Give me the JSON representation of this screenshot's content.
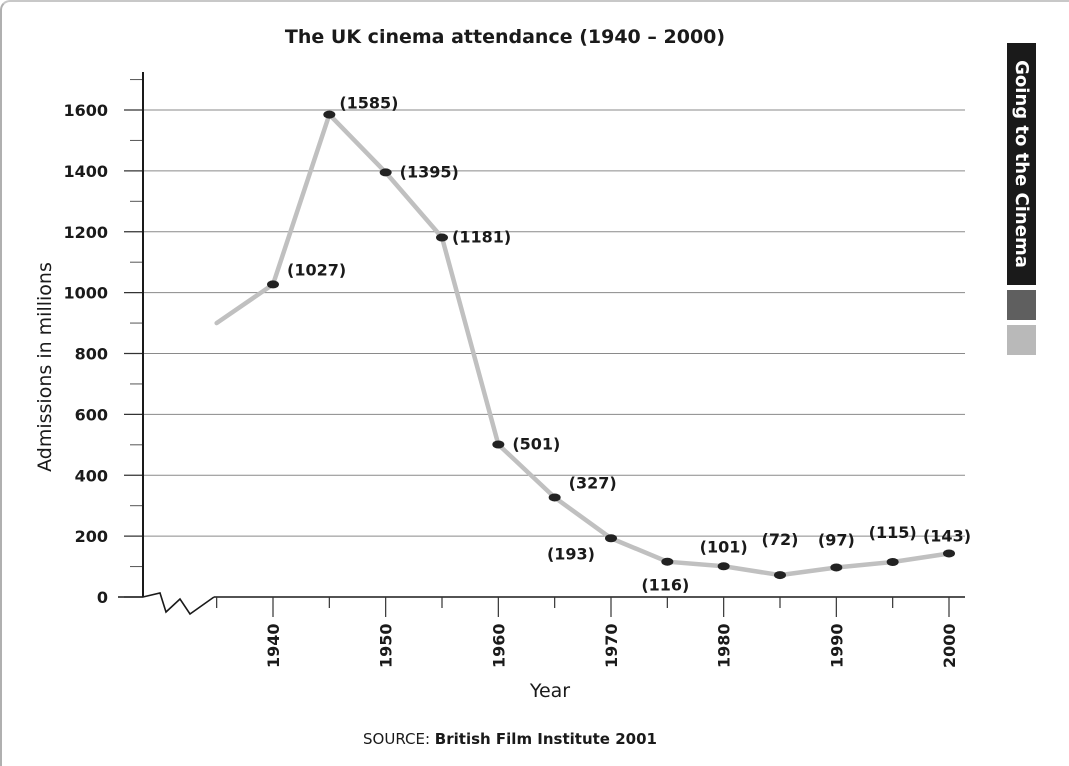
{
  "chart_data": {
    "type": "line",
    "title": "The UK cinema attendance (1940 – 2000)",
    "xlabel": "Year",
    "ylabel": "Admissions in millions",
    "xlim": [
      1932,
      2001
    ],
    "ylim": [
      0,
      1700
    ],
    "yticks": [
      0,
      200,
      400,
      600,
      800,
      1000,
      1200,
      1400,
      1600
    ],
    "xticks": [
      1940,
      1950,
      1960,
      1970,
      1980,
      1990,
      2000
    ],
    "grid": true,
    "line_color": "#c0c0c0",
    "marker_color": "#222222",
    "series": [
      {
        "x": [
          1935,
          1940,
          1945,
          1950,
          1955,
          1960,
          1965,
          1970,
          1975,
          1980,
          1985,
          1990,
          1995,
          2000
        ],
        "values": [
          900,
          1027,
          1585,
          1395,
          1181,
          501,
          327,
          193,
          116,
          101,
          72,
          97,
          115,
          143
        ],
        "markers": [
          false,
          true,
          true,
          true,
          true,
          true,
          true,
          true,
          true,
          true,
          true,
          true,
          true,
          true
        ],
        "labels": [
          "",
          "(1027)",
          "(1585)",
          "(1395)",
          "(1181)",
          "(501)",
          "(327)",
          "(193)",
          "(116)",
          "(101)",
          "(72)",
          "(97)",
          "(115)",
          "(143)"
        ]
      }
    ]
  },
  "source": {
    "prefix": "SOURCE:",
    "name": "British Film Institute 2001"
  },
  "side_tab": {
    "label": "Going to the Cinema",
    "color": "#1a1a1a",
    "swatch_colors": [
      "#5f5f5f",
      "#b9b9b9"
    ]
  }
}
